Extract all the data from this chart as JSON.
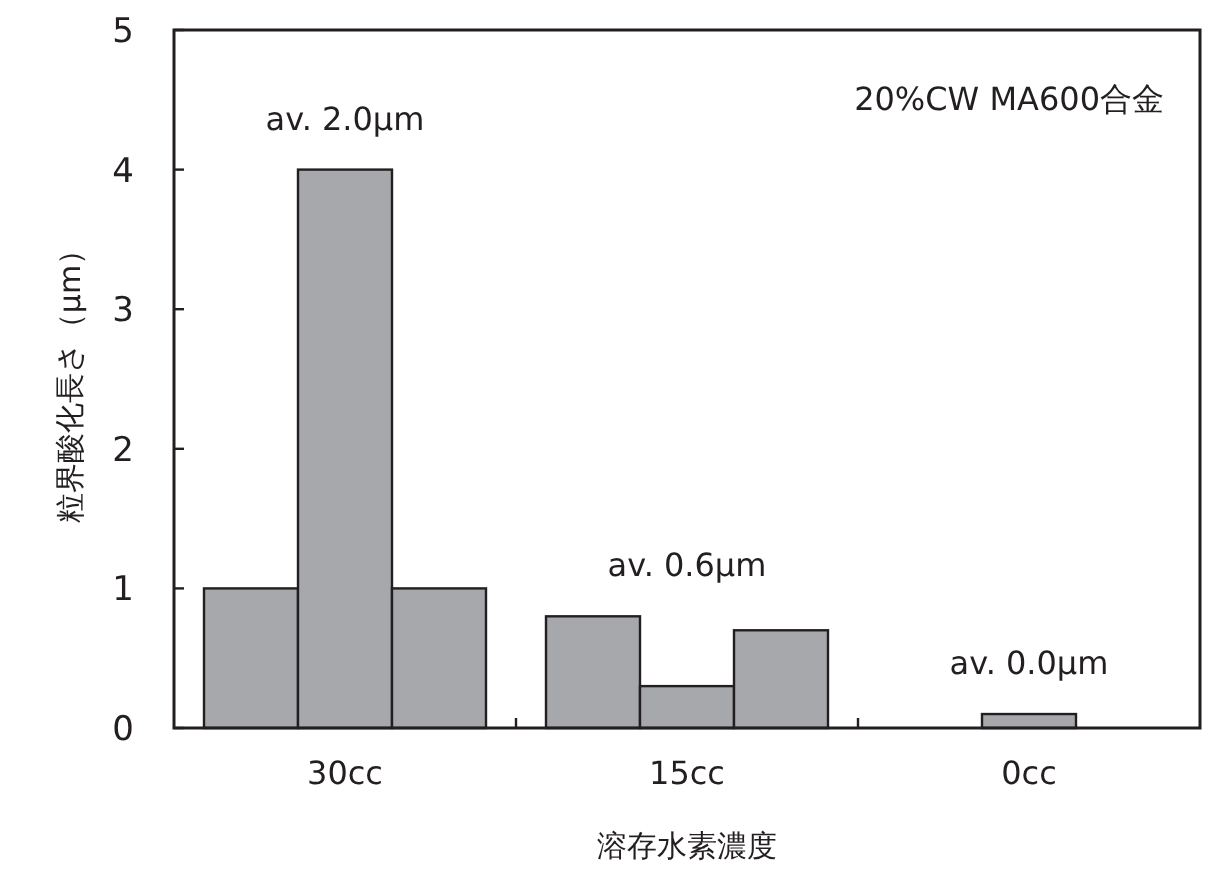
{
  "chart_data": {
    "type": "bar",
    "xlabel": "溶存水素濃度",
    "ylabel": "粒界酸化長さ（μm）",
    "categories": [
      "30cc",
      "15cc",
      "0cc"
    ],
    "series": [
      {
        "color": "#a7a8ab",
        "values": [
          1.0,
          0.8,
          0
        ]
      },
      {
        "color": "#a7a8ab",
        "values": [
          4.0,
          0.3,
          0.1
        ]
      },
      {
        "color": "#a7a8ab",
        "values": [
          1.0,
          0.7,
          0
        ]
      }
    ],
    "ylim": [
      0,
      5
    ],
    "yticks": [
      0,
      1,
      2,
      3,
      4,
      5
    ],
    "grid": false,
    "annotations": [
      "av. 2.0μm",
      "av. 0.6μm",
      "av. 0.0μm",
      "20%CW MA600合金"
    ]
  }
}
